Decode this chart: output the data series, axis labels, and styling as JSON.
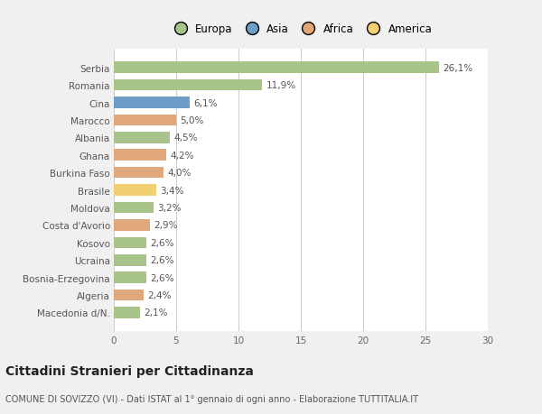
{
  "categories": [
    "Macedonia d/N.",
    "Algeria",
    "Bosnia-Erzegovina",
    "Ucraina",
    "Kosovo",
    "Costa d'Avorio",
    "Moldova",
    "Brasile",
    "Burkina Faso",
    "Ghana",
    "Albania",
    "Marocco",
    "Cina",
    "Romania",
    "Serbia"
  ],
  "values": [
    2.1,
    2.4,
    2.6,
    2.6,
    2.6,
    2.9,
    3.2,
    3.4,
    4.0,
    4.2,
    4.5,
    5.0,
    6.1,
    11.9,
    26.1
  ],
  "labels": [
    "2,1%",
    "2,4%",
    "2,6%",
    "2,6%",
    "2,6%",
    "2,9%",
    "3,2%",
    "3,4%",
    "4,0%",
    "4,2%",
    "4,5%",
    "5,0%",
    "6,1%",
    "11,9%",
    "26,1%"
  ],
  "colors": [
    "#a8c48a",
    "#e0a87a",
    "#a8c48a",
    "#a8c48a",
    "#a8c48a",
    "#e0a87a",
    "#a8c48a",
    "#f0d070",
    "#e0a87a",
    "#e0a87a",
    "#a8c48a",
    "#e0a87a",
    "#6e9dc8",
    "#a8c48a",
    "#a8c48a"
  ],
  "legend_labels": [
    "Europa",
    "Asia",
    "Africa",
    "America"
  ],
  "legend_colors": [
    "#a8c48a",
    "#6e9dc8",
    "#e0a87a",
    "#f0d070"
  ],
  "xlim": [
    0,
    30
  ],
  "xticks": [
    0,
    5,
    10,
    15,
    20,
    25,
    30
  ],
  "title": "Cittadini Stranieri per Cittadinanza",
  "subtitle": "COMUNE DI SOVIZZO (VI) - Dati ISTAT al 1° gennaio di ogni anno - Elaborazione TUTTITALIA.IT",
  "bg_color": "#f0f0f0",
  "plot_bg_color": "#ffffff",
  "bar_height": 0.65,
  "label_fontsize": 7.5,
  "tick_fontsize": 7.5,
  "title_fontsize": 10,
  "subtitle_fontsize": 7
}
